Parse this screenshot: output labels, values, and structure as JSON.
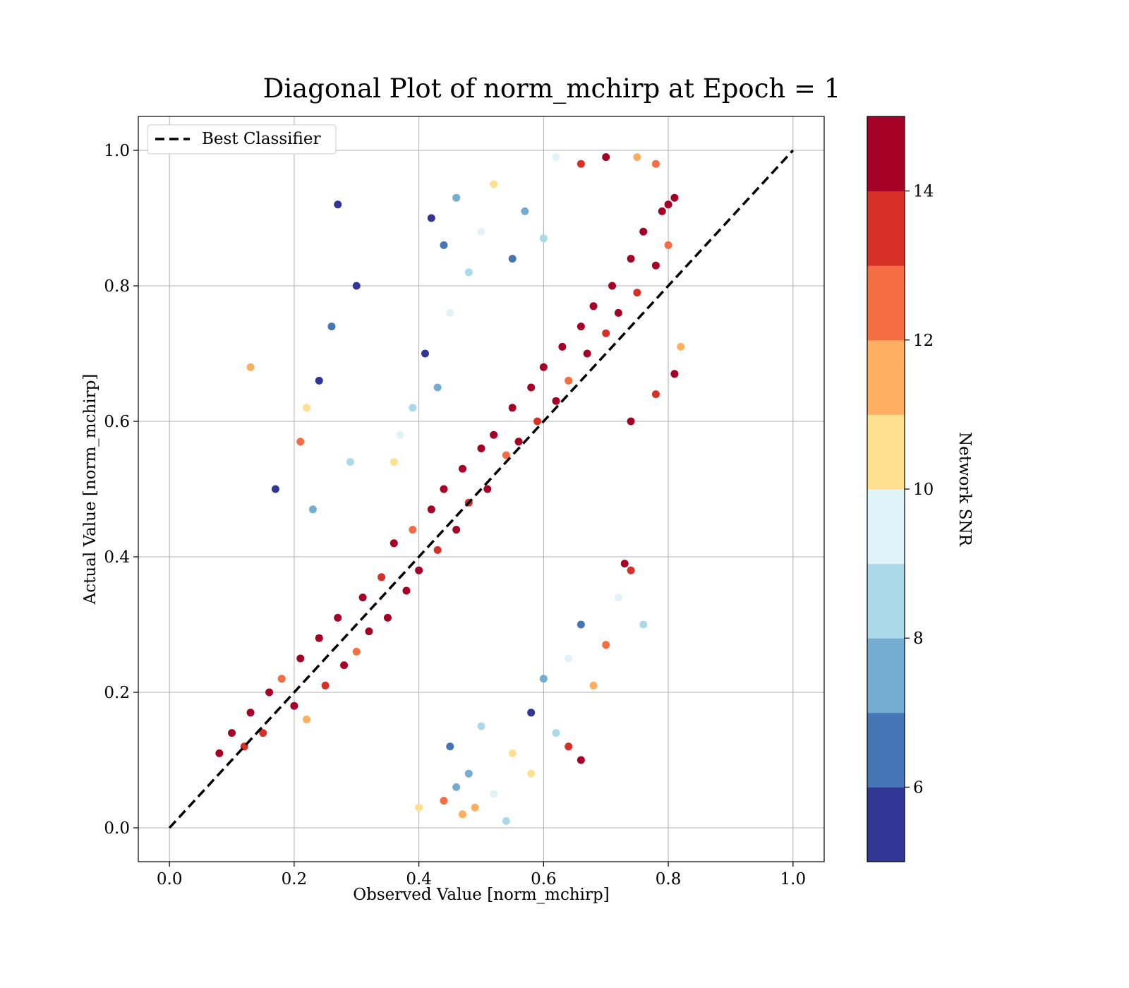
{
  "chart_data": {
    "type": "scatter",
    "title": "Diagonal Plot of norm_mchirp at Epoch = 1",
    "xlabel": "Observed Value [norm_mchirp]",
    "ylabel": "Actual Value [norm_mchirp]",
    "xlim": [
      -0.05,
      1.05
    ],
    "ylim": [
      -0.05,
      1.05
    ],
    "xticks": [
      "0.0",
      "0.2",
      "0.4",
      "0.6",
      "0.8",
      "1.0"
    ],
    "yticks": [
      "0.0",
      "0.2",
      "0.4",
      "0.6",
      "0.8",
      "1.0"
    ],
    "grid": true,
    "legend": {
      "location": "upper-left",
      "entries": [
        "Best Classifier"
      ]
    },
    "reference_line": {
      "name": "Best Classifier",
      "style": "dashed",
      "color": "#000000",
      "from": [
        0.0,
        0.0
      ],
      "to": [
        1.0,
        1.0
      ]
    },
    "colorbar": {
      "label": "Network SNR",
      "range": [
        5,
        15
      ],
      "ticks": [
        "6",
        "8",
        "10",
        "12",
        "14"
      ],
      "colors": [
        "#313695",
        "#4575b4",
        "#74add1",
        "#abd9e9",
        "#e0f3f8",
        "#fee090",
        "#fdae61",
        "#f46d43",
        "#d73027",
        "#a50026"
      ]
    },
    "points_description_fields": [
      "x",
      "y",
      "snr"
    ],
    "points": [
      [
        0.08,
        0.11,
        14.6
      ],
      [
        0.1,
        0.14,
        14.2
      ],
      [
        0.12,
        0.12,
        13.1
      ],
      [
        0.13,
        0.17,
        14.8
      ],
      [
        0.15,
        0.14,
        13.4
      ],
      [
        0.16,
        0.2,
        14.9
      ],
      [
        0.18,
        0.22,
        12.5
      ],
      [
        0.2,
        0.18,
        14.4
      ],
      [
        0.21,
        0.25,
        14.7
      ],
      [
        0.22,
        0.16,
        11.8
      ],
      [
        0.24,
        0.28,
        14.5
      ],
      [
        0.25,
        0.21,
        13.6
      ],
      [
        0.27,
        0.31,
        14.9
      ],
      [
        0.28,
        0.24,
        14.1
      ],
      [
        0.3,
        0.26,
        12.9
      ],
      [
        0.31,
        0.34,
        14.6
      ],
      [
        0.32,
        0.29,
        14.8
      ],
      [
        0.34,
        0.37,
        13.2
      ],
      [
        0.35,
        0.31,
        14.9
      ],
      [
        0.36,
        0.42,
        14.3
      ],
      [
        0.38,
        0.35,
        14.7
      ],
      [
        0.39,
        0.44,
        12.2
      ],
      [
        0.4,
        0.38,
        14.8
      ],
      [
        0.42,
        0.47,
        14.5
      ],
      [
        0.43,
        0.41,
        13.7
      ],
      [
        0.44,
        0.5,
        14.9
      ],
      [
        0.46,
        0.44,
        14.2
      ],
      [
        0.47,
        0.53,
        14.6
      ],
      [
        0.48,
        0.48,
        13.3
      ],
      [
        0.5,
        0.56,
        14.8
      ],
      [
        0.51,
        0.5,
        14.4
      ],
      [
        0.52,
        0.58,
        14.9
      ],
      [
        0.54,
        0.55,
        12.8
      ],
      [
        0.55,
        0.62,
        14.7
      ],
      [
        0.56,
        0.57,
        14.1
      ],
      [
        0.58,
        0.65,
        14.9
      ],
      [
        0.59,
        0.6,
        13.5
      ],
      [
        0.6,
        0.68,
        14.6
      ],
      [
        0.62,
        0.63,
        14.8
      ],
      [
        0.63,
        0.71,
        14.3
      ],
      [
        0.64,
        0.66,
        12.6
      ],
      [
        0.66,
        0.74,
        14.9
      ],
      [
        0.67,
        0.7,
        14.4
      ],
      [
        0.68,
        0.77,
        14.7
      ],
      [
        0.7,
        0.73,
        13.8
      ],
      [
        0.71,
        0.8,
        14.9
      ],
      [
        0.72,
        0.76,
        14.2
      ],
      [
        0.74,
        0.84,
        14.6
      ],
      [
        0.75,
        0.79,
        13.1
      ],
      [
        0.76,
        0.88,
        14.8
      ],
      [
        0.78,
        0.83,
        14.5
      ],
      [
        0.79,
        0.91,
        14.9
      ],
      [
        0.8,
        0.86,
        12.4
      ],
      [
        0.81,
        0.93,
        14.7
      ],
      [
        0.42,
        0.9,
        5.6
      ],
      [
        0.44,
        0.86,
        6.4
      ],
      [
        0.46,
        0.93,
        7.8
      ],
      [
        0.48,
        0.82,
        8.6
      ],
      [
        0.5,
        0.88,
        9.4
      ],
      [
        0.52,
        0.95,
        10.6
      ],
      [
        0.55,
        0.84,
        6.1
      ],
      [
        0.57,
        0.91,
        7.2
      ],
      [
        0.6,
        0.87,
        8.9
      ],
      [
        0.45,
        0.76,
        9.8
      ],
      [
        0.41,
        0.7,
        5.4
      ],
      [
        0.43,
        0.65,
        7.1
      ],
      [
        0.39,
        0.62,
        8.2
      ],
      [
        0.37,
        0.58,
        9.1
      ],
      [
        0.36,
        0.54,
        10.3
      ],
      [
        0.27,
        0.92,
        5.3
      ],
      [
        0.3,
        0.8,
        5.8
      ],
      [
        0.26,
        0.74,
        6.2
      ],
      [
        0.24,
        0.66,
        5.5
      ],
      [
        0.17,
        0.5,
        5.2
      ],
      [
        0.13,
        0.68,
        11.6
      ],
      [
        0.22,
        0.62,
        10.8
      ],
      [
        0.23,
        0.47,
        7.9
      ],
      [
        0.29,
        0.54,
        8.4
      ],
      [
        0.21,
        0.57,
        12.9
      ],
      [
        0.45,
        0.12,
        6.3
      ],
      [
        0.48,
        0.08,
        7.6
      ],
      [
        0.5,
        0.15,
        8.7
      ],
      [
        0.52,
        0.05,
        9.6
      ],
      [
        0.55,
        0.11,
        10.4
      ],
      [
        0.58,
        0.17,
        5.9
      ],
      [
        0.6,
        0.22,
        7.4
      ],
      [
        0.62,
        0.14,
        8.8
      ],
      [
        0.64,
        0.25,
        9.9
      ],
      [
        0.66,
        0.3,
        6.6
      ],
      [
        0.68,
        0.21,
        11.2
      ],
      [
        0.7,
        0.27,
        12.3
      ],
      [
        0.72,
        0.34,
        9.3
      ],
      [
        0.74,
        0.38,
        13.6
      ],
      [
        0.76,
        0.3,
        8.1
      ],
      [
        0.73,
        0.39,
        14.7
      ],
      [
        0.66,
        0.1,
        14.8
      ],
      [
        0.64,
        0.12,
        13.9
      ],
      [
        0.58,
        0.08,
        10.1
      ],
      [
        0.54,
        0.01,
        8.3
      ],
      [
        0.47,
        0.02,
        11.4
      ],
      [
        0.44,
        0.04,
        12.1
      ],
      [
        0.4,
        0.03,
        10.9
      ],
      [
        0.46,
        0.06,
        7.7
      ],
      [
        0.49,
        0.03,
        11.8
      ],
      [
        0.62,
        0.99,
        9.7
      ],
      [
        0.66,
        0.98,
        13.4
      ],
      [
        0.7,
        0.99,
        14.9
      ],
      [
        0.75,
        0.99,
        11.3
      ],
      [
        0.78,
        0.98,
        12.6
      ],
      [
        0.8,
        0.92,
        14.2
      ],
      [
        0.82,
        0.71,
        11.5
      ],
      [
        0.81,
        0.67,
        14.8
      ],
      [
        0.78,
        0.64,
        13.3
      ],
      [
        0.74,
        0.6,
        14.6
      ]
    ]
  }
}
